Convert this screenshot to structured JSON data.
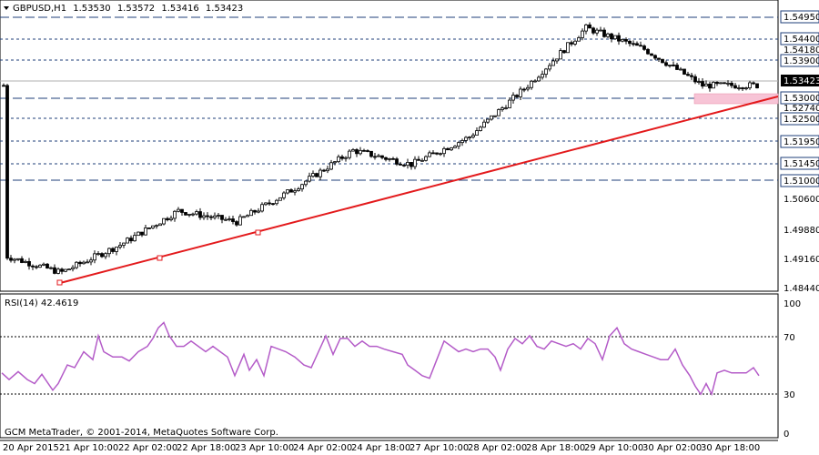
{
  "chart_header": {
    "label": "GBPUSD,H1",
    "open": "1.53530",
    "high": "1.53572",
    "low": "1.53416",
    "close": "1.53423"
  },
  "rsi_header": {
    "label": "RSI(14) 42.4619"
  },
  "copyright": "GCM MetaTrader, © 2001-2014, MetaQuotes Software Corp.",
  "price_axis": {
    "boxed_levels": [
      "1.54950",
      "1.54400",
      "1.53900",
      "1.53000",
      "1.52500",
      "1.51950",
      "1.51450",
      "1.51000"
    ],
    "plain_levels": [
      "1.54180",
      "1.52740",
      "1.50600",
      "1.49880",
      "1.49160",
      "1.48440"
    ],
    "current_price": "1.53423"
  },
  "rsi_axis": {
    "levels": [
      "100",
      "70",
      "30",
      "0"
    ]
  },
  "time_axis": [
    "20 Apr 2015",
    "21 Apr 10:00",
    "22 Apr 02:00",
    "22 Apr 18:00",
    "23 Apr 10:00",
    "24 Apr 02:00",
    "24 Apr 18:00",
    "27 Apr 10:00",
    "28 Apr 02:00",
    "28 Apr 18:00",
    "29 Apr 10:00",
    "30 Apr 02:00",
    "30 Apr 18:00"
  ],
  "colors": {
    "trendline": "#e31a1c",
    "rsi_line": "#b45cc8",
    "support_zone": "#f7c4d6",
    "candles": "#000000"
  },
  "chart_data": [
    {
      "type": "candlestick",
      "title": "GBPUSD,H1",
      "ylim": [
        1.4844,
        1.553
      ],
      "close_path": [
        [
          "20 Apr 2015",
          1.4926
        ],
        [
          "21 Apr 10:00",
          1.4885
        ],
        [
          "22 Apr 02:00",
          1.4952
        ],
        [
          "22 Apr 18:00",
          1.5035
        ],
        [
          "23 Apr 10:00",
          1.5008
        ],
        [
          "24 Apr 02:00",
          1.509
        ],
        [
          "24 Apr 18:00",
          1.5182
        ],
        [
          "27 Apr 10:00",
          1.5148
        ],
        [
          "28 Apr 02:00",
          1.5215
        ],
        [
          "28 Apr 18:00",
          1.534
        ],
        [
          "29 Apr 10:00",
          1.548
        ],
        [
          "30 Apr 02:00",
          1.5428
        ],
        [
          "30 Apr 18:00",
          1.534
        ]
      ],
      "trendline": [
        [
          "21 Apr 10:00",
          1.4865
        ],
        [
          "30 Apr 18:00",
          1.5286
        ]
      ],
      "support_zone": [
        1.529,
        1.5302
      ]
    },
    {
      "type": "line",
      "title": "RSI(14) 42.4619",
      "ylim": [
        0,
        100
      ],
      "levels": [
        30,
        70
      ],
      "values": [
        [
          0,
          46
        ],
        [
          8,
          41
        ],
        [
          18,
          47
        ],
        [
          28,
          41
        ],
        [
          36,
          38
        ],
        [
          44,
          45
        ],
        [
          56,
          33
        ],
        [
          62,
          38
        ],
        [
          72,
          52
        ],
        [
          80,
          50
        ],
        [
          90,
          62
        ],
        [
          100,
          56
        ],
        [
          106,
          74
        ],
        [
          112,
          62
        ],
        [
          122,
          58
        ],
        [
          132,
          58
        ],
        [
          140,
          55
        ],
        [
          150,
          62
        ],
        [
          160,
          66
        ],
        [
          166,
          72
        ],
        [
          172,
          80
        ],
        [
          178,
          84
        ],
        [
          184,
          74
        ],
        [
          192,
          66
        ],
        [
          200,
          66
        ],
        [
          208,
          70
        ],
        [
          216,
          66
        ],
        [
          224,
          62
        ],
        [
          232,
          66
        ],
        [
          240,
          62
        ],
        [
          248,
          58
        ],
        [
          256,
          44
        ],
        [
          266,
          60
        ],
        [
          272,
          48
        ],
        [
          280,
          56
        ],
        [
          288,
          44
        ],
        [
          296,
          66
        ],
        [
          304,
          64
        ],
        [
          312,
          62
        ],
        [
          322,
          58
        ],
        [
          332,
          52
        ],
        [
          340,
          50
        ],
        [
          348,
          62
        ],
        [
          356,
          74
        ],
        [
          364,
          60
        ],
        [
          372,
          72
        ],
        [
          380,
          72
        ],
        [
          388,
          66
        ],
        [
          396,
          70
        ],
        [
          404,
          66
        ],
        [
          412,
          66
        ],
        [
          420,
          64
        ],
        [
          430,
          62
        ],
        [
          440,
          60
        ],
        [
          446,
          52
        ],
        [
          454,
          48
        ],
        [
          462,
          44
        ],
        [
          470,
          42
        ],
        [
          478,
          56
        ],
        [
          486,
          70
        ],
        [
          494,
          66
        ],
        [
          502,
          62
        ],
        [
          510,
          64
        ],
        [
          518,
          62
        ],
        [
          526,
          64
        ],
        [
          534,
          64
        ],
        [
          542,
          58
        ],
        [
          548,
          48
        ],
        [
          556,
          64
        ],
        [
          564,
          72
        ],
        [
          572,
          68
        ],
        [
          580,
          74
        ],
        [
          588,
          66
        ],
        [
          596,
          64
        ],
        [
          604,
          70
        ],
        [
          612,
          68
        ],
        [
          620,
          66
        ],
        [
          628,
          68
        ],
        [
          636,
          64
        ],
        [
          644,
          72
        ],
        [
          652,
          68
        ],
        [
          660,
          56
        ],
        [
          668,
          74
        ],
        [
          676,
          80
        ],
        [
          684,
          68
        ],
        [
          692,
          64
        ],
        [
          700,
          62
        ],
        [
          708,
          60
        ],
        [
          716,
          58
        ],
        [
          724,
          56
        ],
        [
          732,
          56
        ],
        [
          740,
          64
        ],
        [
          748,
          52
        ],
        [
          756,
          44
        ],
        [
          762,
          36
        ],
        [
          768,
          30
        ],
        [
          774,
          38
        ],
        [
          780,
          30
        ],
        [
          786,
          46
        ],
        [
          794,
          48
        ],
        [
          802,
          46
        ],
        [
          810,
          46
        ],
        [
          818,
          46
        ],
        [
          826,
          50
        ],
        [
          832,
          44
        ]
      ]
    }
  ]
}
